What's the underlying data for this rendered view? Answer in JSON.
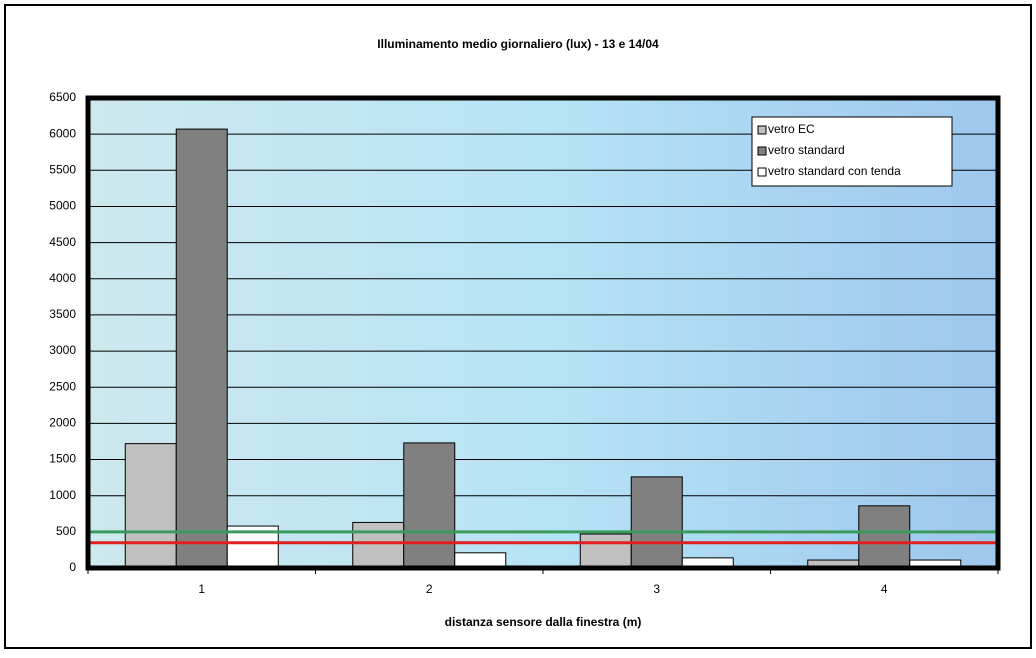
{
  "chart_data": {
    "type": "bar",
    "title": "Illuminamento medio giornaliero (lux) - 13 e 14/04",
    "x_label": "distanza sensore dalla finestra (m)",
    "categories": [
      "1",
      "2",
      "3",
      "4"
    ],
    "series": [
      {
        "name": "vetro EC",
        "color": "#c0c0c0",
        "values": [
          1720,
          630,
          470,
          110
        ]
      },
      {
        "name": "vetro standard",
        "color": "#808080",
        "values": [
          6070,
          1730,
          1260,
          860
        ]
      },
      {
        "name": "vetro standard con tenda",
        "color": "#ffffff",
        "values": [
          580,
          210,
          140,
          110
        ]
      }
    ],
    "reference_lines": [
      {
        "value": 500,
        "color": "#3a9a5a"
      },
      {
        "value": 350,
        "color": "#e02020"
      }
    ],
    "ylim": [
      0,
      6500
    ],
    "yticks": [
      0,
      500,
      1000,
      1500,
      2000,
      2500,
      3000,
      3500,
      4000,
      4500,
      5000,
      5500,
      6000,
      6500
    ],
    "grid": true,
    "legend": "top-right"
  }
}
